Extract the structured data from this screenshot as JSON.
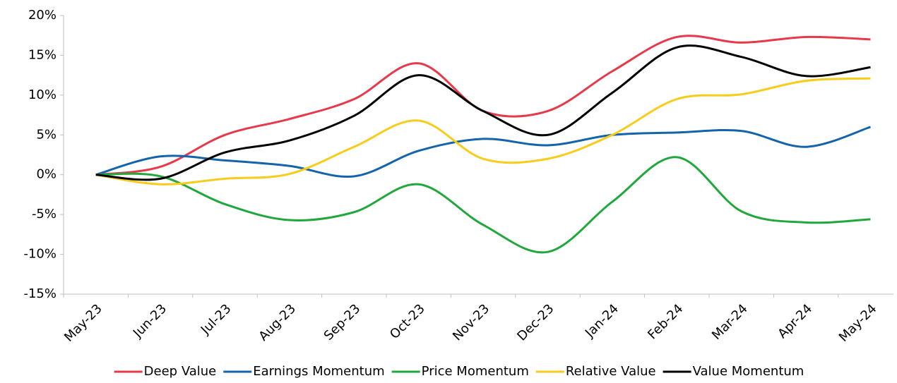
{
  "chart_data": {
    "type": "line",
    "categories": [
      "May-23",
      "Jun-23",
      "Jul-23",
      "Aug-23",
      "Sep-23",
      "Oct-23",
      "Nov-23",
      "Dec-23",
      "Jan-24",
      "Feb-24",
      "Mar-24",
      "Apr-24",
      "May-24"
    ],
    "series": [
      {
        "name": "Deep Value",
        "color": "#e8394a",
        "values": [
          0,
          1,
          5,
          7,
          9.5,
          14,
          8,
          8,
          13,
          17.3,
          16.6,
          17.3,
          17
        ]
      },
      {
        "name": "Earnings Momentum",
        "color": "#1464ac",
        "values": [
          0,
          2.3,
          1.8,
          1.1,
          -0.2,
          3,
          4.5,
          3.7,
          5,
          5.3,
          5.5,
          3.5,
          6
        ]
      },
      {
        "name": "Price Momentum",
        "color": "#21a83c",
        "values": [
          0,
          -0.2,
          -3.7,
          -5.7,
          -4.7,
          -1.2,
          -6.3,
          -9.7,
          -3.4,
          2.2,
          -4.6,
          -6,
          -5.6
        ]
      },
      {
        "name": "Relative Value",
        "color": "#f8cc1b",
        "values": [
          0,
          -1.2,
          -0.5,
          0.1,
          3.5,
          6.8,
          2,
          2,
          5,
          9.5,
          10.1,
          11.8,
          12.1
        ]
      },
      {
        "name": "Value Momentum",
        "color": "#000000",
        "values": [
          0,
          -0.5,
          2.8,
          4.3,
          7.4,
          12.5,
          8,
          5,
          10.3,
          16,
          14.8,
          12.4,
          13.5
        ]
      }
    ],
    "ylim": [
      -15,
      20
    ],
    "yticks": [
      {
        "value": -15,
        "label": "-15%"
      },
      {
        "value": -10,
        "label": "-10%"
      },
      {
        "value": -5,
        "label": "-5%"
      },
      {
        "value": 0,
        "label": "0%"
      },
      {
        "value": 5,
        "label": "5%"
      },
      {
        "value": 10,
        "label": "10%"
      },
      {
        "value": 15,
        "label": "15%"
      },
      {
        "value": 20,
        "label": "20%"
      }
    ],
    "grid": false,
    "legend": "bottom"
  }
}
